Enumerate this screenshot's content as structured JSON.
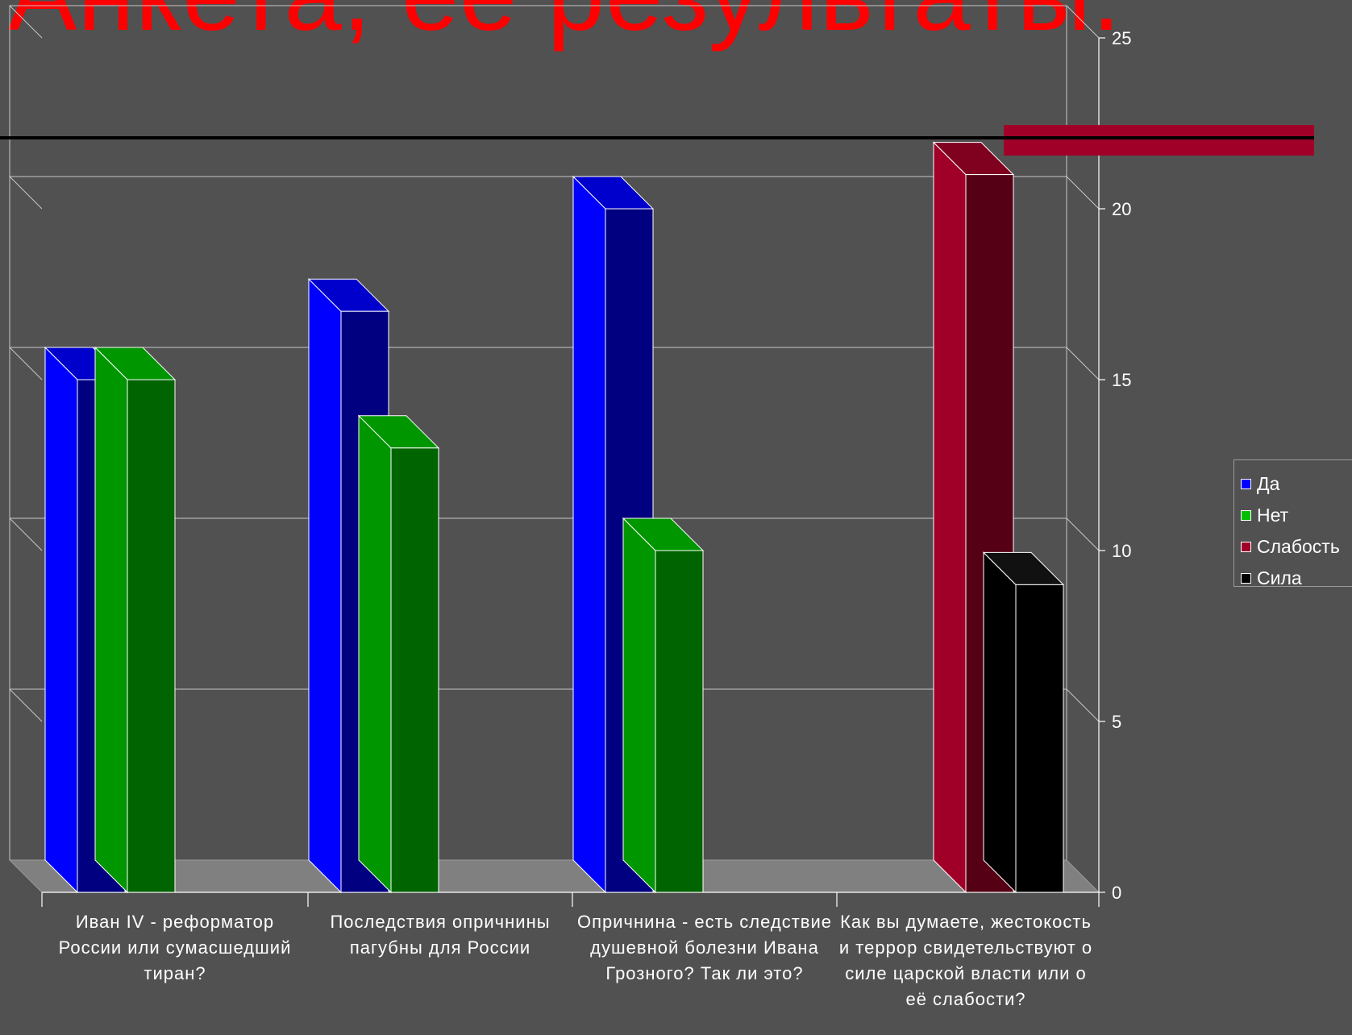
{
  "slide": {
    "title": "Анкета, ее результаты."
  },
  "chart_data": {
    "type": "bar",
    "categories": [
      "Иван IV - реформатор России или сумасшедший тиран?",
      "Последствия опричнины пагубны для России",
      "Опричнина - есть следствие душевной болезни Ивана Грозного? Так ли это?",
      "Как вы думаете, жестокость и террор свидетельствуют о силе царской власти или о её слабости?"
    ],
    "series": [
      {
        "name": "Да",
        "values": [
          15,
          17,
          20,
          null
        ],
        "color": "#0000ff"
      },
      {
        "name": "Нет",
        "values": [
          15,
          13,
          10,
          null
        ],
        "color": "#00a000"
      },
      {
        "name": "Слабость",
        "values": [
          null,
          null,
          null,
          21
        ],
        "color": "#a00028"
      },
      {
        "name": "Сила",
        "values": [
          null,
          null,
          null,
          9
        ],
        "color": "#000000"
      }
    ],
    "ylim": [
      0,
      25
    ],
    "yticks": [
      "0",
      "5",
      "10",
      "15",
      "20",
      "25"
    ],
    "grid": true,
    "legend_position": "right"
  }
}
